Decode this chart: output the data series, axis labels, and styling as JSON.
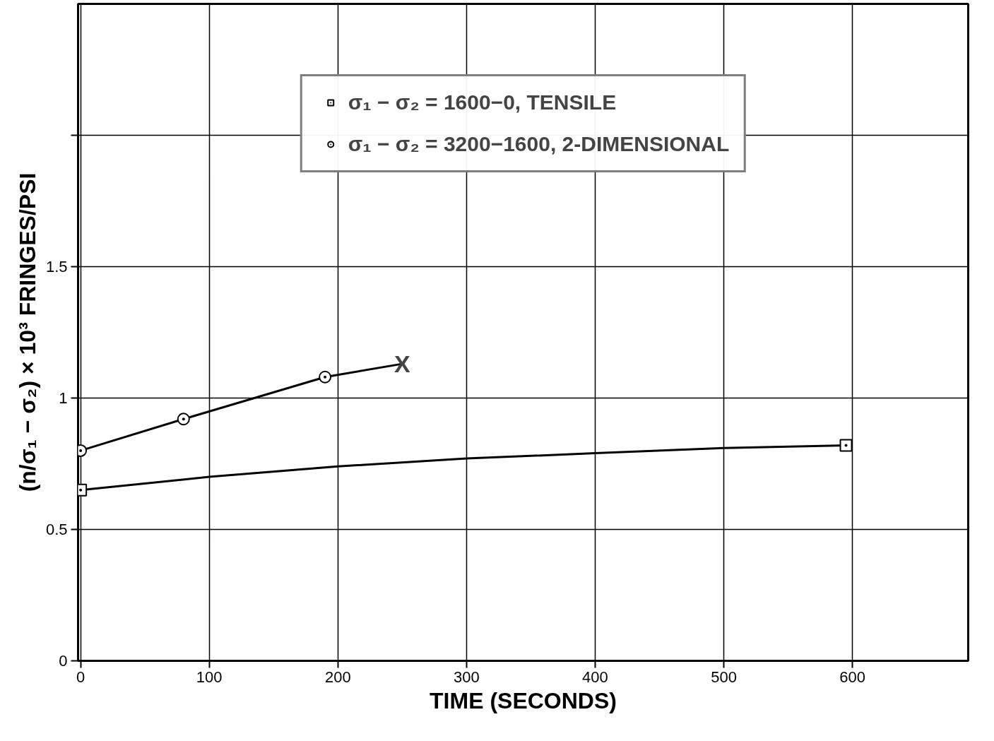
{
  "chart_data": {
    "type": "line",
    "xlabel": "TIME (SECONDS)",
    "ylabel": "(n/σ₁ − σ₂) × 10³ FRINGES/PSI",
    "xlim": [
      -2,
      690
    ],
    "ylim": [
      0,
      2.5
    ],
    "xticks": [
      0,
      100,
      200,
      300,
      400,
      500,
      600
    ],
    "yticks": [
      0,
      0.5,
      1.0,
      1.5,
      {
        "value": 2.0,
        "label": null
      }
    ],
    "grid": true,
    "legend": "top",
    "line_style": "solid",
    "series": [
      {
        "color": "#000000",
        "marker": "none",
        "x": [
          0,
          100,
          200,
          300,
          400,
          500,
          595
        ],
        "values": [
          0.65,
          0.7,
          0.74,
          0.77,
          0.79,
          0.81,
          0.82
        ]
      },
      {
        "color": "#000000",
        "marker": "none",
        "x": [
          0,
          80,
          190,
          250
        ],
        "values": [
          0.8,
          0.92,
          1.08,
          1.13
        ]
      },
      {
        "type": "scatter",
        "name": "σ₁ − σ₂ = 1600−0, TENSILE",
        "color": "#000000",
        "marker": "square",
        "x": [
          0,
          595
        ],
        "values": [
          0.65,
          0.82
        ]
      },
      {
        "type": "scatter",
        "name": "σ₁ − σ₂ = 3200−1600, 2-DIMENSIONAL",
        "color": "#000000",
        "marker": "circle",
        "x": [
          0,
          80,
          190
        ],
        "values": [
          0.8,
          0.92,
          1.08
        ]
      }
    ],
    "annotations": [
      {
        "text": "X",
        "x": 250,
        "y": 1.13
      }
    ]
  }
}
